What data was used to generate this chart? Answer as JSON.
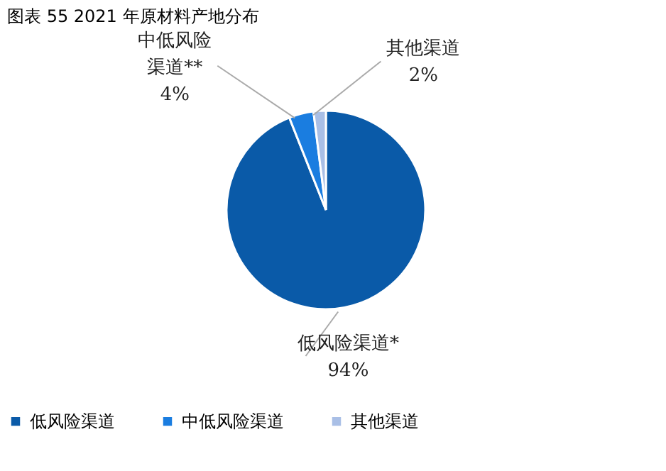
{
  "chart_data": {
    "type": "pie",
    "title": "图表 55 2021 年原材料产地分布",
    "categories": [
      "低风险渠道",
      "中低风险渠道",
      "其他渠道"
    ],
    "values": [
      94,
      4,
      2
    ],
    "colors": [
      "#0a5aa8",
      "#1a7de0",
      "#a9bfe6"
    ],
    "value_labels": [
      "低风险渠道*\n94%",
      "中低风险渠道**\n4%",
      "其他渠道\n2%"
    ],
    "legend": "bottom"
  }
}
